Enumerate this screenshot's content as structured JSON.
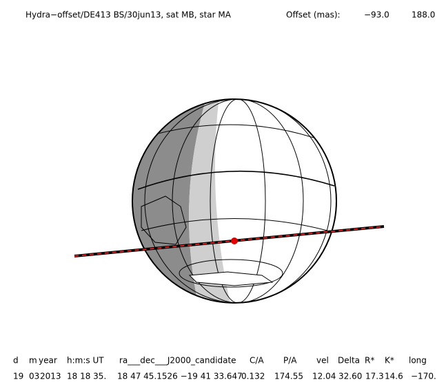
{
  "header": {
    "title": "Hydra−offset/DE413 BS/30jun13, sat MB, star MA",
    "offset_label": "Offset (mas):",
    "offset_x": "−93.0",
    "offset_y": "188.0"
  },
  "table": {
    "headers": [
      "d",
      "m",
      "year",
      "h:m:s UT",
      "ra___dec___J2000_candidate",
      "C/A",
      "P/A",
      "vel",
      "Delta",
      "R*",
      "K*",
      "long"
    ],
    "values": [
      "19",
      "03",
      "2013",
      "18 18 35.",
      "18 47 45.1526 −19 41  33.647",
      "0.132",
      "174.55",
      "12.04",
      "32.60",
      "17.3",
      "14.6",
      "−170."
    ]
  }
}
